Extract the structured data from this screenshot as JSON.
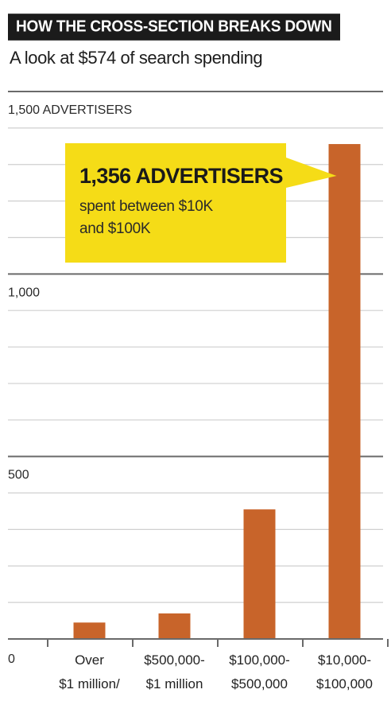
{
  "header": {
    "title": "HOW THE CROSS-SECTION BREAKS DOWN",
    "subtitle": "A look at $574 of search spending"
  },
  "colors": {
    "bar": "#c8642a",
    "callout": "#f5dc17",
    "title_bg": "#1b1b1b",
    "grid_minor": "#cfcfcf",
    "grid_major": "#6a6a6a"
  },
  "chart_data": {
    "type": "bar",
    "title": "HOW THE CROSS-SECTION BREAKS DOWN",
    "subtitle": "A look at $574 of search spending",
    "ylabel": "ADVERTISERS",
    "ylim": [
      0,
      1500
    ],
    "yticks": [
      {
        "value": 0,
        "label": "0"
      },
      {
        "value": 500,
        "label": "500"
      },
      {
        "value": 1000,
        "label": "1,000"
      },
      {
        "value": 1500,
        "label": "1,500 ADVERTISERS"
      }
    ],
    "minor_grid_step": 100,
    "grid": true,
    "categories": [
      [
        "Over",
        "$1 million/"
      ],
      [
        "$500,000-",
        "$1 million"
      ],
      [
        "$100,000-",
        "$500,000"
      ],
      [
        "$10,000-",
        "$100,000"
      ]
    ],
    "values": [
      45,
      70,
      355,
      1356
    ],
    "annotation": {
      "headline": "1,356 ADVERTISERS",
      "lines": [
        "spent between $10K",
        "and $100K"
      ],
      "target_category_index": 3
    }
  }
}
